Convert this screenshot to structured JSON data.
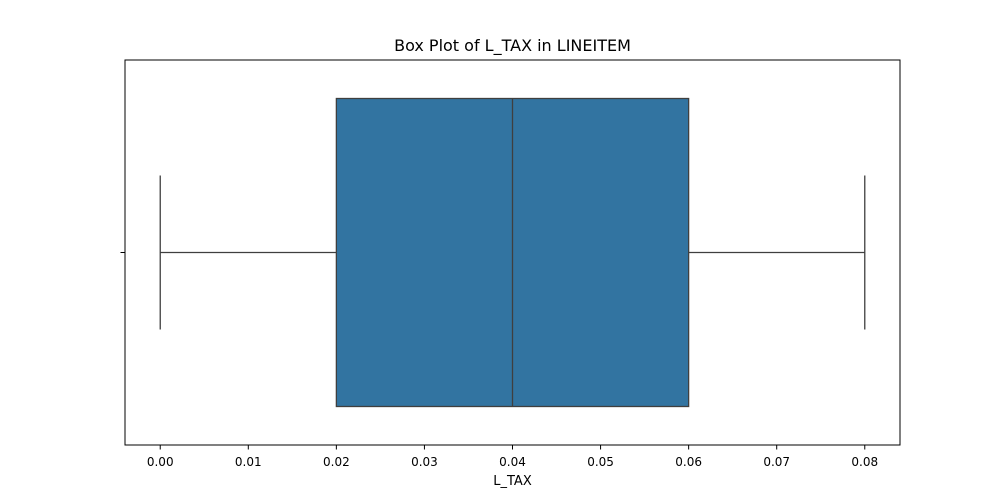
{
  "chart_data": {
    "type": "box",
    "title": "Box Plot of L_TAX in LINEITEM",
    "xlabel": "L_TAX",
    "ylabel": "",
    "xlim": [
      -0.004,
      0.084
    ],
    "xticks": [
      0.0,
      0.01,
      0.02,
      0.03,
      0.04,
      0.05,
      0.06,
      0.07,
      0.08
    ],
    "xtick_labels": [
      "0.00",
      "0.01",
      "0.02",
      "0.03",
      "0.04",
      "0.05",
      "0.06",
      "0.07",
      "0.08"
    ],
    "orientation": "horizontal",
    "grid": false,
    "legend": false,
    "series": [
      {
        "whisker_low": 0.0,
        "q1": 0.02,
        "median": 0.04,
        "q3": 0.06,
        "whisker_high": 0.08,
        "outliers": []
      }
    ],
    "colors": {
      "box_fill": "#3274a1",
      "line": "#3f3f3f",
      "axes": "#000000"
    }
  }
}
